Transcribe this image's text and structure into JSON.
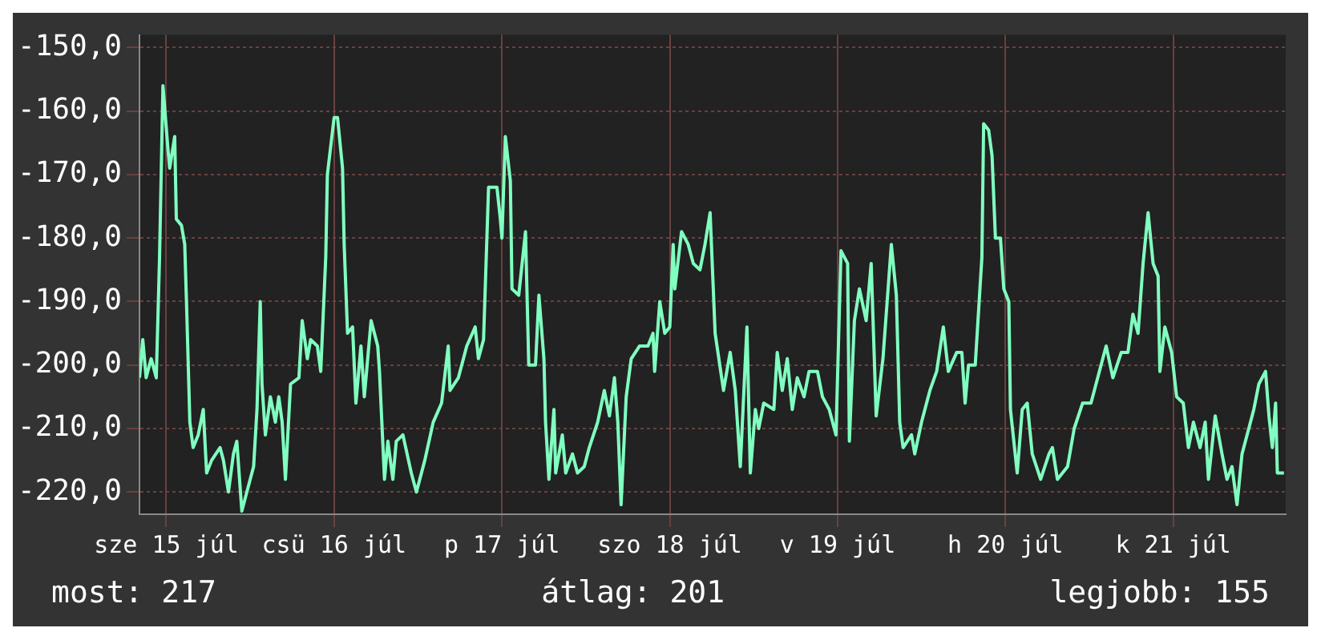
{
  "chart_data": {
    "type": "line",
    "x": [
      "--07-15T08:10",
      "--07-15T08:38",
      "--07-15T09:07",
      "--07-15T09:50",
      "--07-15T10:34",
      "--07-15T11:02",
      "--07-15T11:31",
      "--07-15T12:14",
      "--07-15T12:29",
      "--07-15T13:12",
      "--07-15T13:26",
      "--07-15T14:10",
      "--07-15T14:38",
      "--07-15T14:53",
      "--07-15T15:22",
      "--07-15T15:50",
      "--07-15T16:34",
      "--07-15T17:17",
      "--07-15T17:46",
      "--07-15T18:29",
      "--07-15T19:41",
      "--07-15T20:10",
      "--07-15T20:53",
      "--07-15T21:36",
      "--07-15T22:05",
      "--07-15T22:48",
      "--07-15T23:31",
      "--07-16T00:29",
      "--07-16T00:58",
      "--07-16T01:26",
      "--07-16T01:41",
      "--07-16T02:10",
      "--07-16T02:53",
      "--07-16T03:36",
      "--07-16T04:05",
      "--07-16T04:34",
      "--07-16T05:02",
      "--07-16T05:46",
      "--07-16T06:58",
      "--07-16T07:26",
      "--07-16T08:10",
      "--07-16T08:38",
      "--07-16T09:36",
      "--07-16T10:05",
      "--07-16T10:48",
      "--07-16T11:02",
      "--07-16T12:00",
      "--07-16T12:29",
      "--07-16T13:12",
      "--07-16T13:26",
      "--07-16T13:55",
      "--07-16T14:38",
      "--07-16T15:07",
      "--07-16T15:50",
      "--07-16T16:19",
      "--07-16T17:17",
      "--07-16T18:14",
      "--07-16T18:29",
      "--07-16T19:12",
      "--07-16T19:41",
      "--07-16T20:24",
      "--07-16T20:53",
      "--07-16T21:50",
      "--07-16T23:02",
      "--07-16T23:46",
      "--07-17T00:58",
      "--07-17T02:10",
      "--07-17T03:22",
      "--07-17T04:19",
      "--07-17T04:34",
      "--07-17T05:46",
      "--07-17T06:58",
      "--07-17T08:10",
      "--07-17T08:38",
      "--07-17T09:22",
      "--07-17T10:05",
      "--07-17T11:17",
      "--07-17T11:46",
      "--07-17T12:00",
      "--07-17T12:29",
      "--07-17T13:12",
      "--07-17T13:26",
      "--07-17T14:24",
      "--07-17T15:22",
      "--07-17T15:50",
      "--07-17T16:48",
      "--07-17T17:17",
      "--07-17T18:00",
      "--07-17T18:14",
      "--07-17T18:43",
      "--07-17T19:26",
      "--07-17T19:41",
      "--07-17T20:38",
      "--07-17T21:07",
      "--07-17T22:05",
      "--07-17T22:48",
      "--07-17T23:46",
      "--07-18T00:29",
      "--07-18T01:41",
      "--07-18T02:38",
      "--07-18T03:22",
      "--07-18T04:05",
      "--07-18T04:34",
      "--07-18T05:02",
      "--07-18T05:46",
      "--07-18T06:29",
      "--07-18T07:41",
      "--07-18T08:53",
      "--07-18T09:36",
      "--07-18T09:50",
      "--07-18T10:34",
      "--07-18T11:17",
      "--07-18T12:00",
      "--07-18T12:29",
      "--07-18T12:43",
      "--07-18T13:41",
      "--07-18T14:38",
      "--07-18T15:22",
      "--07-18T16:19",
      "--07-18T17:02",
      "--07-18T17:46",
      "--07-18T18:29",
      "--07-18T19:41",
      "--07-18T20:38",
      "--07-18T21:22",
      "--07-18T22:05",
      "--07-18T23:02",
      "--07-18T23:31",
      "--07-19T00:14",
      "--07-19T00:43",
      "--07-19T01:26",
      "--07-19T02:53",
      "--07-19T03:22",
      "--07-19T04:05",
      "--07-19T04:48",
      "--07-19T05:31",
      "--07-19T06:14",
      "--07-19T07:12",
      "--07-19T07:55",
      "--07-19T09:07",
      "--07-19T09:50",
      "--07-19T10:48",
      "--07-19T11:46",
      "--07-19T12:29",
      "--07-19T13:26",
      "--07-19T13:41",
      "--07-19T14:24",
      "--07-19T15:07",
      "--07-19T16:05",
      "--07-19T16:48",
      "--07-19T17:31",
      "--07-19T18:29",
      "--07-19T19:41",
      "--07-19T20:24",
      "--07-19T20:53",
      "--07-19T21:22",
      "--07-19T22:34",
      "--07-19T23:02",
      "--07-20T00:00",
      "--07-20T01:12",
      "--07-20T02:10",
      "--07-20T03:07",
      "--07-20T03:50",
      "--07-20T05:02",
      "--07-20T05:46",
      "--07-20T06:14",
      "--07-20T06:43",
      "--07-20T07:41",
      "--07-20T08:38",
      "--07-20T08:53",
      "--07-20T09:36",
      "--07-20T10:05",
      "--07-20T10:34",
      "--07-20T11:17",
      "--07-20T11:46",
      "--07-20T12:29",
      "--07-20T12:43",
      "--07-20T13:41",
      "--07-20T14:24",
      "--07-20T15:07",
      "--07-20T15:50",
      "--07-20T17:02",
      "--07-20T18:14",
      "--07-20T18:43",
      "--07-20T19:26",
      "--07-20T20:53",
      "--07-20T21:50",
      "--07-20T23:02",
      "--07-21T00:14",
      "--07-21T01:26",
      "--07-21T02:24",
      "--07-21T03:22",
      "--07-21T04:34",
      "--07-21T05:31",
      "--07-21T06:14",
      "--07-21T06:58",
      "--07-21T07:41",
      "--07-21T08:24",
      "--07-21T09:07",
      "--07-21T09:50",
      "--07-21T10:05",
      "--07-21T10:48",
      "--07-21T11:46",
      "--07-21T12:29",
      "--07-21T13:26",
      "--07-21T14:10",
      "--07-21T14:53",
      "--07-21T15:50",
      "--07-21T16:34",
      "--07-21T17:02",
      "--07-21T18:00",
      "--07-21T18:58",
      "--07-21T19:41",
      "--07-21T20:24",
      "--07-21T21:07",
      "--07-21T21:50",
      "--07-21T22:48",
      "--07-21T23:31",
      "--07-22T00:14",
      "--07-22T01:12",
      "--07-22T01:41",
      "--07-22T02:10",
      "--07-22T02:38",
      "--07-22T02:53",
      "--07-22T03:50"
    ],
    "series": [
      {
        "color": "#80ffc0",
        "values": [
          -202,
          -196,
          -202,
          -199,
          -202,
          -183,
          -156,
          -166,
          -169,
          -164,
          -177,
          -178,
          -181,
          -190,
          -209,
          -213,
          -211,
          -207,
          -217,
          -215,
          -213,
          -215,
          -220,
          -214,
          -212,
          -223,
          -220,
          -216,
          -207,
          -190,
          -203,
          -211,
          -205,
          -209,
          -205,
          -209,
          -218,
          -203,
          -202,
          -193,
          -199,
          -196,
          -197,
          -201,
          -183,
          -170,
          -161,
          -161,
          -169,
          -181,
          -195,
          -194,
          -206,
          -197,
          -205,
          -193,
          -197,
          -201,
          -218,
          -212,
          -218,
          -212,
          -211,
          -217,
          -220,
          -215,
          -209,
          -206,
          -197,
          -204,
          -202,
          -197,
          -194,
          -199,
          -196,
          -172,
          -172,
          -177,
          -180,
          -164,
          -171,
          -188,
          -189,
          -179,
          -200,
          -200,
          -189,
          -199,
          -209,
          -218,
          -207,
          -217,
          -211,
          -217,
          -214,
          -217,
          -216,
          -213,
          -209,
          -204,
          -208,
          -202,
          -209,
          -222,
          -205,
          -199,
          -197,
          -197,
          -195,
          -201,
          -190,
          -195,
          -194,
          -181,
          -188,
          -179,
          -181,
          -184,
          -185,
          -181,
          -176,
          -195,
          -204,
          -198,
          -204,
          -216,
          -194,
          -217,
          -207,
          -210,
          -206,
          -207,
          -198,
          -204,
          -199,
          -207,
          -202,
          -205,
          -201,
          -201,
          -205,
          -207,
          -211,
          -182,
          -184,
          -212,
          -193,
          -188,
          -193,
          -184,
          -208,
          -199,
          -181,
          -189,
          -209,
          -213,
          -211,
          -214,
          -209,
          -204,
          -201,
          -194,
          -201,
          -198,
          -198,
          -206,
          -200,
          -200,
          -183,
          -162,
          -163,
          -167,
          -180,
          -180,
          -188,
          -190,
          -207,
          -217,
          -207,
          -206,
          -214,
          -218,
          -214,
          -213,
          -218,
          -216,
          -210,
          -206,
          -206,
          -201,
          -197,
          -202,
          -198,
          -198,
          -192,
          -195,
          -184,
          -176,
          -184,
          -186,
          -201,
          -194,
          -198,
          -205,
          -206,
          -213,
          -209,
          -213,
          -209,
          -218,
          -208,
          -214,
          -218,
          -216,
          -222,
          -214,
          -210,
          -207,
          -203,
          -201,
          -208,
          -213,
          -206,
          -217,
          -217
        ]
      }
    ],
    "xlim": [
      "--07-15T08:10",
      "--07-22T04:05"
    ],
    "xticks": [
      {
        "value": "--07-15T12:00",
        "label": "sze 15 júl"
      },
      {
        "value": "--07-16T12:00",
        "label": "csü 16 júl"
      },
      {
        "value": "--07-17T12:00",
        "label": "p 17 júl"
      },
      {
        "value": "--07-18T12:00",
        "label": "szo 18 júl"
      },
      {
        "value": "--07-19T12:00",
        "label": "v 19 júl"
      },
      {
        "value": "--07-20T12:00",
        "label": "h 20 júl"
      },
      {
        "value": "--07-21T12:00",
        "label": "k 21 júl"
      }
    ],
    "ylim": [
      -223.5,
      -148
    ],
    "yticks": [
      {
        "value": -150,
        "label": "-150,0"
      },
      {
        "value": -160,
        "label": "-160,0"
      },
      {
        "value": -170,
        "label": "-170,0"
      },
      {
        "value": -180,
        "label": "-180,0"
      },
      {
        "value": -190,
        "label": "-190,0"
      },
      {
        "value": -200,
        "label": "-200,0"
      },
      {
        "value": -210,
        "label": "-210,0"
      },
      {
        "value": -220,
        "label": "-220,0"
      }
    ],
    "grid": true,
    "legend": false,
    "marker": "none",
    "line_style": "solid",
    "annotations": [
      "most: 217",
      "átlag: 201",
      "legjobb: 155"
    ]
  }
}
